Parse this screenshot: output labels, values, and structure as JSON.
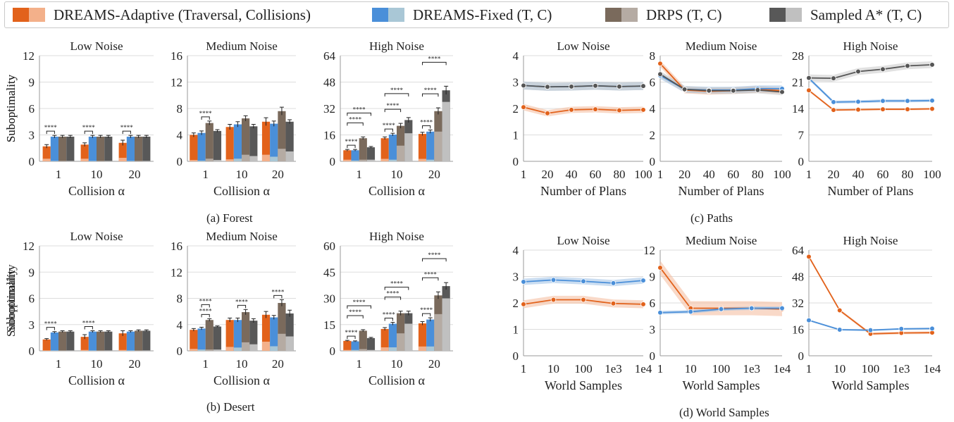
{
  "legend": {
    "items": [
      {
        "label": "DREAMS-Adaptive (Traversal, Collisions)",
        "colors": [
          "#e2621b",
          "#f3b08a"
        ]
      },
      {
        "label": "DREAMS-Fixed (T, C)",
        "colors": [
          "#4a8fd9",
          "#a9c7d6"
        ]
      },
      {
        "label": "DRPS (T, C)",
        "colors": [
          "#7a6a5c",
          "#b5aba3"
        ]
      },
      {
        "label": "Sampled A* (T, C)",
        "colors": [
          "#585858",
          "#c0c0c0"
        ]
      }
    ]
  },
  "captions": {
    "forest": "(a)  Forest",
    "desert": "(b)  Desert",
    "paths": "(c)  Paths",
    "world": "(d)  World Samples"
  },
  "sig_label": "****",
  "chart_data": [
    {
      "type": "bar",
      "title": "Low Noise",
      "xlabel": "Collision α",
      "ylabel": "Suboptimality",
      "categories": [
        "1",
        "10",
        "20"
      ],
      "ylim": [
        0,
        12
      ],
      "yticks": [
        0,
        3,
        6,
        9,
        12
      ],
      "series": [
        {
          "name": "DREAMS-Adaptive",
          "values": [
            1.7,
            1.9,
            2.1
          ],
          "collisions": [
            0.3,
            0.3,
            0.4
          ],
          "errors": [
            0.2,
            0.2,
            0.3
          ]
        },
        {
          "name": "DREAMS-Fixed",
          "values": [
            2.8,
            2.8,
            2.8
          ],
          "collisions": [
            0.05,
            0.05,
            0.05
          ],
          "errors": [
            0.15,
            0.15,
            0.15
          ]
        },
        {
          "name": "DRPS",
          "values": [
            2.8,
            2.8,
            2.8
          ],
          "collisions": [
            0.05,
            0.05,
            0.05
          ],
          "errors": [
            0.15,
            0.15,
            0.15
          ]
        },
        {
          "name": "Sampled A*",
          "values": [
            2.8,
            2.8,
            2.8
          ],
          "collisions": [
            0.05,
            0.05,
            0.05
          ],
          "errors": [
            0.15,
            0.15,
            0.15
          ]
        }
      ]
    },
    {
      "type": "bar",
      "title": "Medium Noise",
      "xlabel": "Collision α",
      "ylabel": "",
      "categories": [
        "1",
        "10",
        "20"
      ],
      "ylim": [
        0,
        16
      ],
      "yticks": [
        0,
        4,
        8,
        12,
        16
      ],
      "series": [
        {
          "name": "DREAMS-Adaptive",
          "values": [
            4.0,
            5.2,
            6.0
          ],
          "collisions": [
            0.2,
            0.3,
            1.0
          ],
          "errors": [
            0.3,
            0.4,
            0.6
          ]
        },
        {
          "name": "DREAMS-Fixed",
          "values": [
            4.3,
            5.6,
            5.7
          ],
          "collisions": [
            0.1,
            0.4,
            0.7
          ],
          "errors": [
            0.3,
            0.4,
            0.4
          ]
        },
        {
          "name": "DRPS",
          "values": [
            5.8,
            6.5,
            7.6
          ],
          "collisions": [
            0.4,
            1.0,
            1.9
          ],
          "errors": [
            0.3,
            0.4,
            0.6
          ]
        },
        {
          "name": "Sampled A*",
          "values": [
            4.6,
            5.3,
            6.0
          ],
          "collisions": [
            0.2,
            0.8,
            1.5
          ],
          "errors": [
            0.2,
            0.3,
            0.3
          ]
        }
      ]
    },
    {
      "type": "bar",
      "title": "High Noise",
      "xlabel": "Collision α",
      "ylabel": "",
      "categories": [
        "1",
        "10",
        "20"
      ],
      "ylim": [
        0,
        64
      ],
      "yticks": [
        0,
        16,
        32,
        48,
        64
      ],
      "series": [
        {
          "name": "DREAMS-Adaptive",
          "values": [
            6.7,
            14.0,
            16.6
          ],
          "collisions": [
            1.0,
            1.5,
            1.5
          ],
          "errors": [
            0.5,
            0.8,
            1.0
          ]
        },
        {
          "name": "DREAMS-Fixed",
          "values": [
            6.7,
            16.2,
            18.0
          ],
          "collisions": [
            0.5,
            1.0,
            1.0
          ],
          "errors": [
            0.5,
            0.8,
            1.0
          ]
        },
        {
          "name": "DRPS",
          "values": [
            14.0,
            21.5,
            30.4
          ],
          "collisions": [
            1.0,
            9.5,
            18.0
          ],
          "errors": [
            0.8,
            1.5,
            2.0
          ]
        },
        {
          "name": "Sampled A*",
          "values": [
            8.5,
            25.0,
            43.0
          ],
          "collisions": [
            1.0,
            17.0,
            36.0
          ],
          "errors": [
            0.5,
            1.5,
            2.5
          ]
        }
      ]
    },
    {
      "type": "line",
      "title": "Low Noise",
      "xlabel": "Number of Plans",
      "ylabel": "Suboptimality",
      "x": [
        "1",
        "20",
        "40",
        "60",
        "80",
        "100"
      ],
      "ylim": [
        0,
        4
      ],
      "yticks": [
        0,
        1,
        2,
        3,
        4
      ],
      "series": [
        {
          "name": "DREAMS-Adaptive",
          "values": [
            2.05,
            1.82,
            1.95,
            1.97,
            1.93,
            1.95
          ],
          "band": 0.12
        },
        {
          "name": "DREAMS-Fixed",
          "values": [
            2.87,
            2.82,
            2.83,
            2.86,
            2.83,
            2.85
          ],
          "band": 0.15
        },
        {
          "name": "Sampled A*",
          "values": [
            2.87,
            2.82,
            2.83,
            2.86,
            2.83,
            2.85
          ],
          "band": 0.15
        }
      ]
    },
    {
      "type": "line",
      "title": "Medium Noise",
      "xlabel": "Number of Plans",
      "ylabel": "",
      "x": [
        "1",
        "20",
        "40",
        "60",
        "80",
        "100"
      ],
      "ylim": [
        0,
        8
      ],
      "yticks": [
        0,
        2,
        4,
        6,
        8
      ],
      "series": [
        {
          "name": "DREAMS-Adaptive",
          "values": [
            7.4,
            5.4,
            5.3,
            5.35,
            5.45,
            5.35
          ],
          "band": 0.25
        },
        {
          "name": "DREAMS-Fixed",
          "values": [
            6.5,
            5.45,
            5.4,
            5.4,
            5.5,
            5.5
          ],
          "band": 0.25
        },
        {
          "name": "Sampled A*",
          "values": [
            6.6,
            5.45,
            5.35,
            5.35,
            5.4,
            5.25
          ],
          "band": 0.25
        }
      ]
    },
    {
      "type": "line",
      "title": "High Noise",
      "xlabel": "Number of Plans",
      "ylabel": "",
      "x": [
        "1",
        "20",
        "40",
        "60",
        "80",
        "100"
      ],
      "ylim": [
        0,
        28
      ],
      "yticks": [
        0,
        7,
        14,
        21,
        28
      ],
      "series": [
        {
          "name": "DREAMS-Adaptive",
          "values": [
            18.8,
            13.6,
            13.7,
            13.8,
            13.8,
            13.9
          ],
          "band": 0.3
        },
        {
          "name": "DREAMS-Fixed",
          "values": [
            22.0,
            15.7,
            15.8,
            16.0,
            16.0,
            16.1
          ],
          "band": 0.4
        },
        {
          "name": "Sampled A*",
          "values": [
            22.1,
            22.0,
            23.8,
            24.4,
            25.3,
            25.6
          ],
          "band": 0.9
        }
      ]
    },
    {
      "type": "bar",
      "title": "Low Noise",
      "xlabel": "Collision α",
      "ylabel": "Suboptimality",
      "categories": [
        "1",
        "10",
        "20"
      ],
      "ylim": [
        0,
        12
      ],
      "yticks": [
        0,
        3,
        6,
        9,
        12
      ],
      "series": [
        {
          "name": "DREAMS-Adaptive",
          "values": [
            1.3,
            1.6,
            2.0
          ],
          "collisions": [
            0.05,
            0.1,
            0.1
          ],
          "errors": [
            0.1,
            0.25,
            0.3
          ]
        },
        {
          "name": "DREAMS-Fixed",
          "values": [
            2.1,
            2.2,
            2.2
          ],
          "collisions": [
            0.05,
            0.05,
            0.05
          ],
          "errors": [
            0.1,
            0.1,
            0.1
          ]
        },
        {
          "name": "DRPS",
          "values": [
            2.2,
            2.2,
            2.3
          ],
          "collisions": [
            0.05,
            0.05,
            0.05
          ],
          "errors": [
            0.1,
            0.1,
            0.1
          ]
        },
        {
          "name": "Sampled A*",
          "values": [
            2.2,
            2.2,
            2.3
          ],
          "collisions": [
            0.05,
            0.05,
            0.05
          ],
          "errors": [
            0.1,
            0.1,
            0.1
          ]
        }
      ]
    },
    {
      "type": "bar",
      "title": "Medium Noise",
      "xlabel": "Collision α",
      "ylabel": "",
      "categories": [
        "1",
        "10",
        "20"
      ],
      "ylim": [
        0,
        16
      ],
      "yticks": [
        0,
        4,
        8,
        12,
        16
      ],
      "series": [
        {
          "name": "DREAMS-Adaptive",
          "values": [
            3.2,
            4.7,
            5.5
          ],
          "collisions": [
            0.3,
            0.6,
            1.4
          ],
          "errors": [
            0.2,
            0.3,
            0.5
          ]
        },
        {
          "name": "DREAMS-Fixed",
          "values": [
            3.4,
            4.7,
            5.1
          ],
          "collisions": [
            0.2,
            0.5,
            0.7
          ],
          "errors": [
            0.2,
            0.3,
            0.3
          ]
        },
        {
          "name": "DRPS",
          "values": [
            4.7,
            5.9,
            7.3
          ],
          "collisions": [
            0.2,
            1.3,
            2.6
          ],
          "errors": [
            0.2,
            0.4,
            0.5
          ]
        },
        {
          "name": "Sampled A*",
          "values": [
            3.7,
            4.6,
            5.7
          ],
          "collisions": [
            0.2,
            1.0,
            2.2
          ],
          "errors": [
            0.1,
            0.3,
            0.5
          ]
        }
      ]
    },
    {
      "type": "bar",
      "title": "High Noise",
      "xlabel": "Collision α",
      "ylabel": "",
      "categories": [
        "1",
        "10",
        "20"
      ],
      "ylim": [
        0,
        60
      ],
      "yticks": [
        0,
        15,
        30,
        45,
        60
      ],
      "series": [
        {
          "name": "DREAMS-Adaptive",
          "values": [
            5.7,
            12.5,
            15.7
          ],
          "collisions": [
            0.5,
            2.0,
            2.5
          ],
          "errors": [
            0.3,
            0.8,
            1.0
          ]
        },
        {
          "name": "DREAMS-Fixed",
          "values": [
            5.4,
            15.5,
            17.9
          ],
          "collisions": [
            0.5,
            2.0,
            2.5
          ],
          "errors": [
            0.3,
            0.8,
            1.0
          ]
        },
        {
          "name": "DRPS",
          "values": [
            11.5,
            21.5,
            31.7
          ],
          "collisions": [
            1.0,
            10.0,
            21.0
          ],
          "errors": [
            0.6,
            1.2,
            2.0
          ]
        },
        {
          "name": "Sampled A*",
          "values": [
            7.3,
            21.5,
            37.0
          ],
          "collisions": [
            0.5,
            15.5,
            30.0
          ],
          "errors": [
            0.4,
            1.2,
            2.0
          ]
        }
      ]
    },
    {
      "type": "line",
      "title": "Low Noise",
      "xlabel": "World Samples",
      "ylabel": "Suboptimality",
      "x": [
        "1",
        "10",
        "100",
        "1e3",
        "1e4"
      ],
      "ylim": [
        0,
        4
      ],
      "yticks": [
        0,
        1,
        2,
        3,
        4
      ],
      "series": [
        {
          "name": "DREAMS-Adaptive",
          "values": [
            1.95,
            2.12,
            2.12,
            1.98,
            1.95
          ],
          "band": 0.15
        },
        {
          "name": "DREAMS-Fixed",
          "values": [
            2.8,
            2.87,
            2.82,
            2.75,
            2.85
          ],
          "band": 0.12
        }
      ]
    },
    {
      "type": "line",
      "title": "Medium Noise",
      "xlabel": "World Samples",
      "ylabel": "",
      "x": [
        "1",
        "10",
        "100",
        "1e3",
        "1e4"
      ],
      "ylim": [
        0,
        12
      ],
      "yticks": [
        0,
        3,
        6,
        9,
        12
      ],
      "series": [
        {
          "name": "DREAMS-Adaptive",
          "values": [
            10.0,
            5.4,
            5.4,
            5.4,
            5.3
          ],
          "band": 0.8
        },
        {
          "name": "DREAMS-Fixed",
          "values": [
            4.9,
            5.0,
            5.3,
            5.4,
            5.4
          ],
          "band": 0.2
        }
      ]
    },
    {
      "type": "line",
      "title": "High Noise",
      "xlabel": "World Samples",
      "ylabel": "",
      "x": [
        "1",
        "10",
        "100",
        "1e3",
        "1e4"
      ],
      "ylim": [
        0,
        64
      ],
      "yticks": [
        0,
        16,
        32,
        48,
        64
      ],
      "series": [
        {
          "name": "DREAMS-Adaptive",
          "values": [
            60.0,
            27.5,
            13.3,
            13.8,
            14.0
          ],
          "band": 0.8
        },
        {
          "name": "DREAMS-Fixed",
          "values": [
            21.5,
            15.8,
            15.5,
            16.3,
            16.5
          ],
          "band": 0.5
        }
      ]
    }
  ]
}
